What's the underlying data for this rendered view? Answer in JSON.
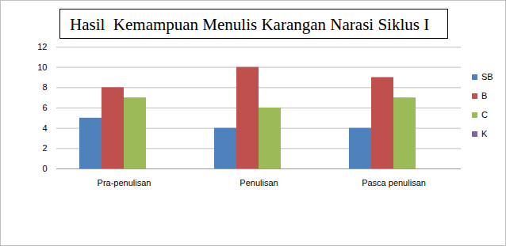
{
  "chart_data": {
    "type": "bar",
    "title": "Hasil  Kemampuan Menulis Karangan Narasi Siklus I",
    "categories": [
      "Pra-penulisan",
      "Penulisan",
      "Pasca penulisan"
    ],
    "series": [
      {
        "name": "SB",
        "color": "#4f81bd",
        "values": [
          5,
          4,
          4
        ]
      },
      {
        "name": "B",
        "color": "#c0504d",
        "values": [
          8,
          10,
          9
        ]
      },
      {
        "name": "C",
        "color": "#9bbb59",
        "values": [
          7,
          6,
          7
        ]
      },
      {
        "name": "K",
        "color": "#8064a2",
        "values": [
          0,
          0,
          0
        ]
      }
    ],
    "ylim": [
      0,
      12
    ],
    "yticks": [
      0,
      2,
      4,
      6,
      8,
      10,
      12
    ],
    "grid": true,
    "legend": "right"
  }
}
